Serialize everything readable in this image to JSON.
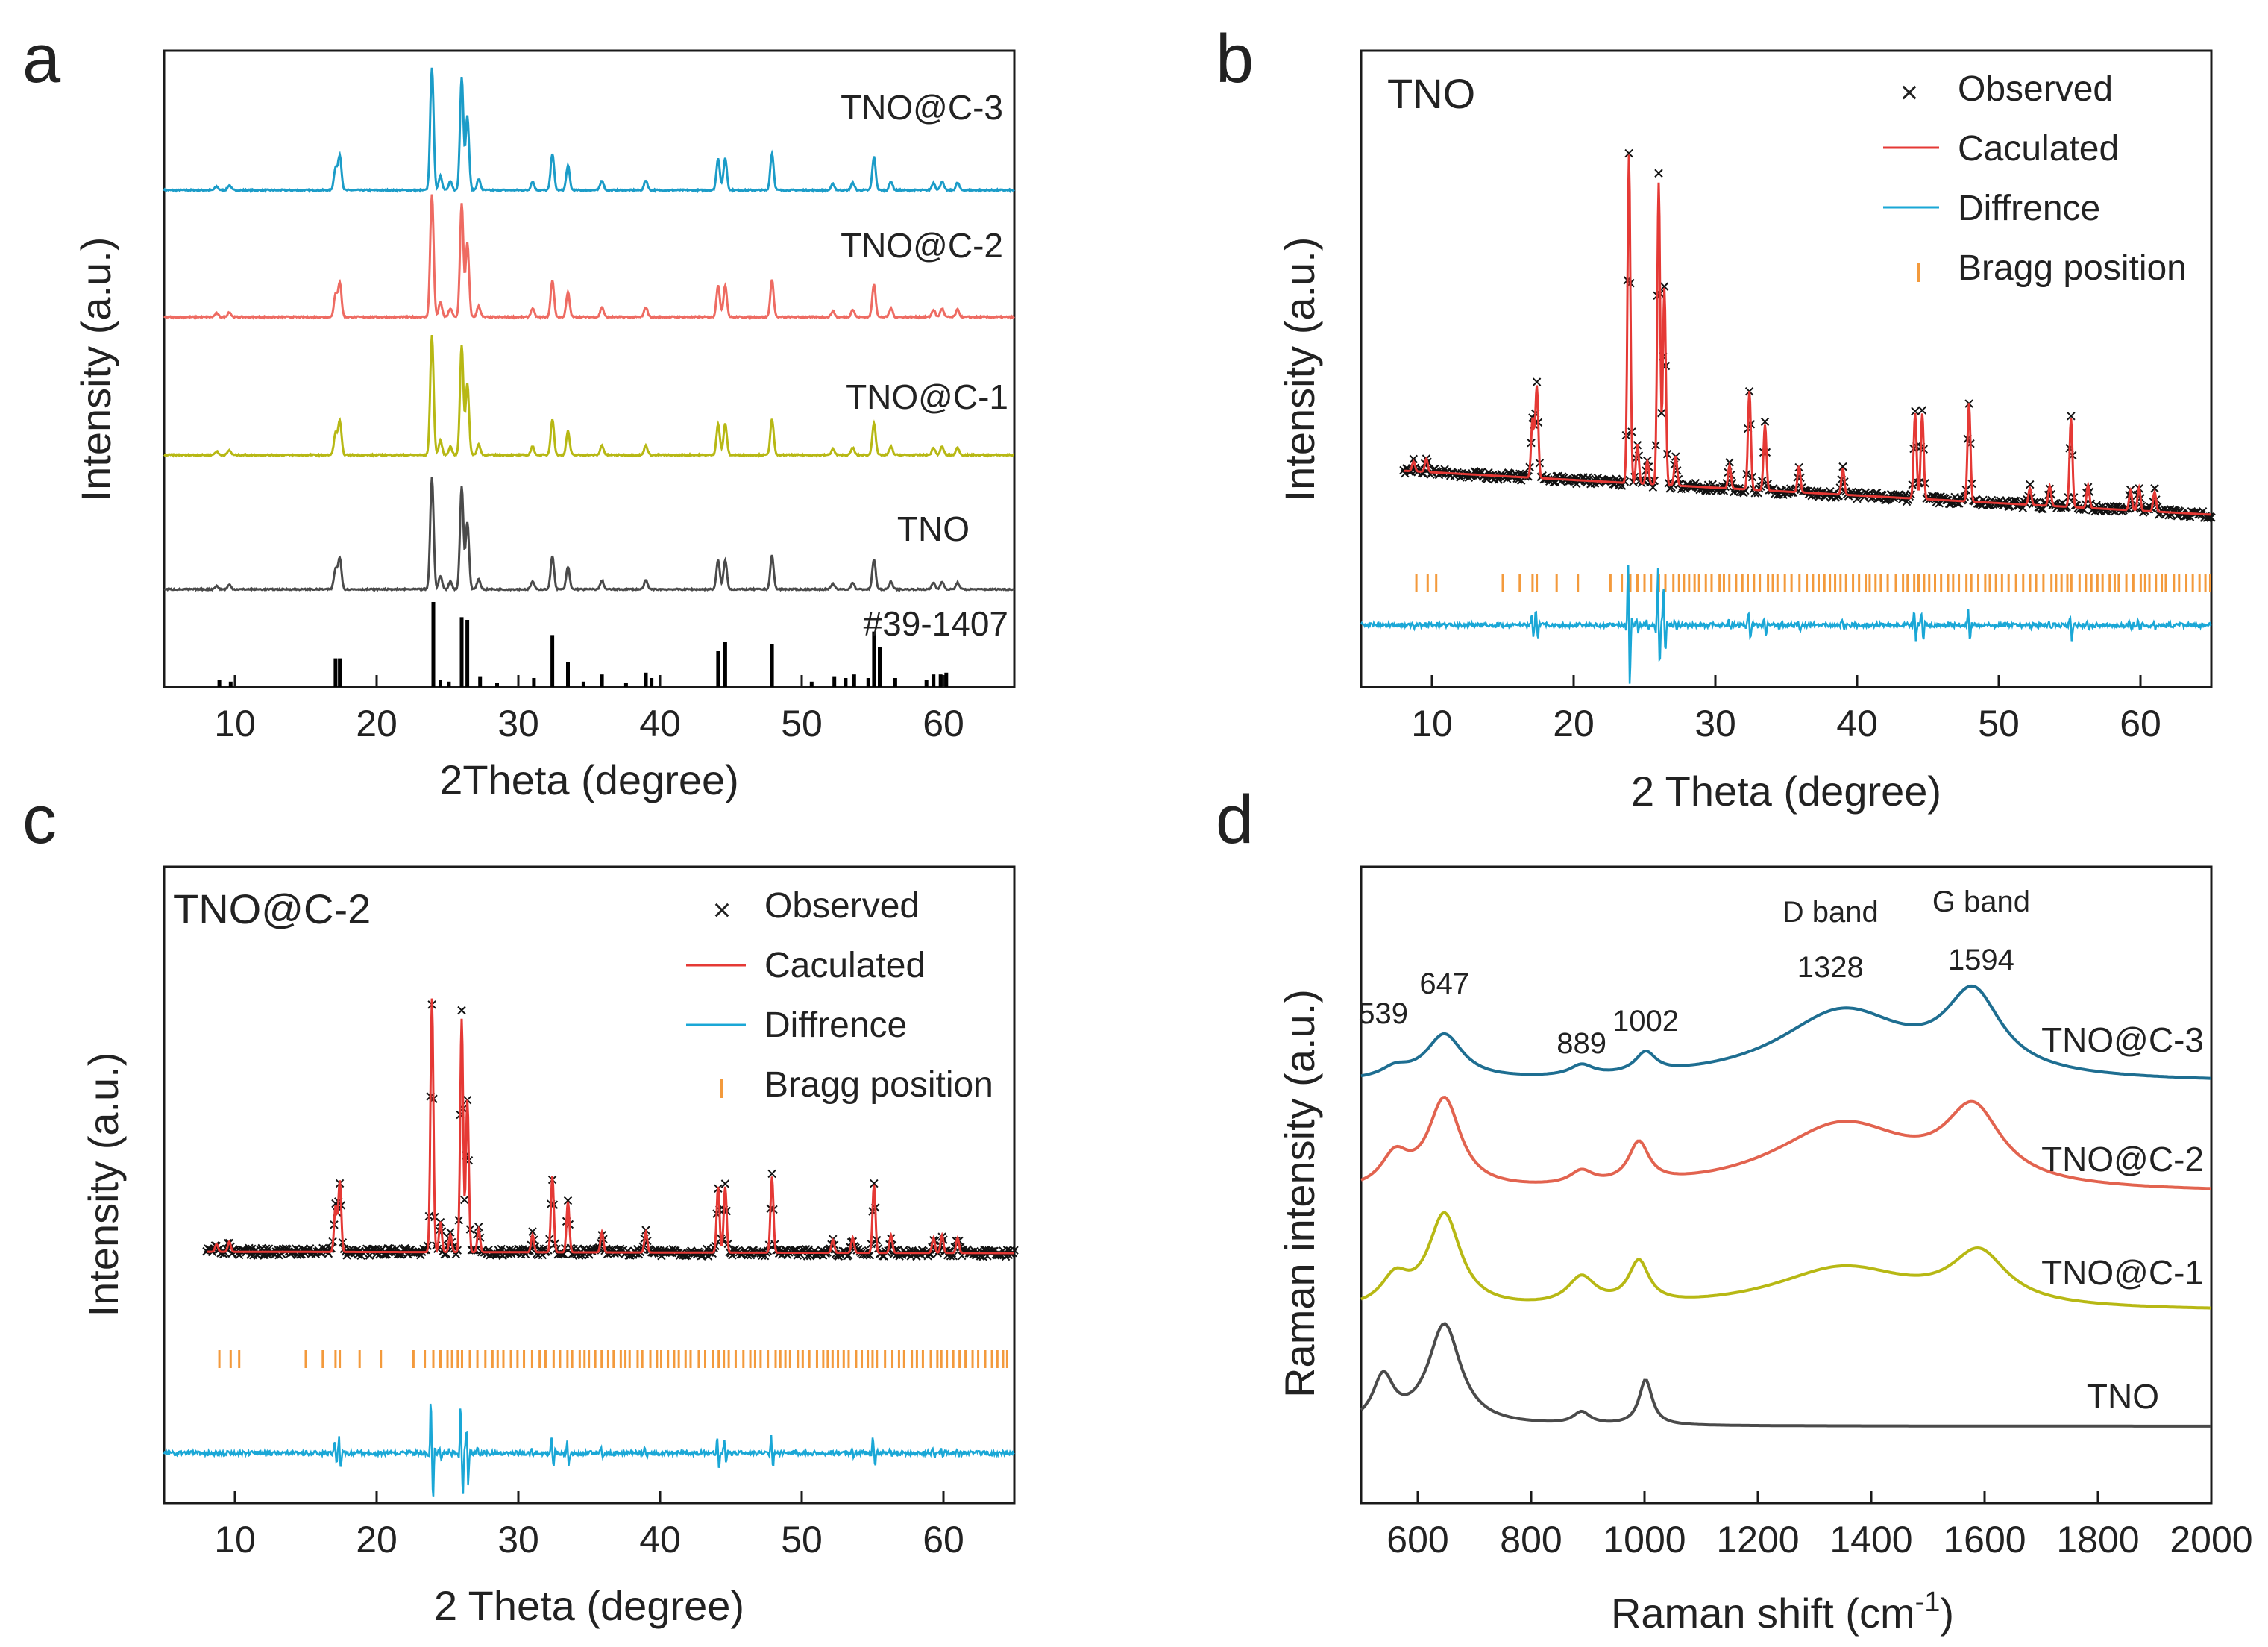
{
  "colors": {
    "TNO": "#4a4a4a",
    "TNO@C-1": "#b7b814",
    "TNO@C-2": "#ee6b62",
    "TNO@C-3": "#1b9cc8",
    "raman_TNO@C-3": "#1e6e91",
    "raman_TNO@C-2": "#e2634f",
    "observed": "#111111",
    "calculated": "#e53935",
    "difference": "#1aa7d6",
    "bragg": "#f39a3c",
    "reference": "#000000"
  },
  "chart_data": [
    {
      "panel": "a",
      "type": "line",
      "xlabel": "2Theta (degree)",
      "ylabel": "Intensity (a.u.)",
      "xlim": [
        5,
        65
      ],
      "xticks": [
        10,
        20,
        30,
        40,
        50,
        60
      ],
      "series_names": [
        "TNO@C-3",
        "TNO@C-2",
        "TNO@C-1",
        "TNO",
        "#39-1407"
      ],
      "peaks": [
        {
          "x": 8.7,
          "rel": 0.03
        },
        {
          "x": 9.6,
          "rel": 0.04
        },
        {
          "x": 17.1,
          "rel": 0.18
        },
        {
          "x": 17.4,
          "rel": 0.28
        },
        {
          "x": 23.9,
          "rel": 1.0
        },
        {
          "x": 24.5,
          "rel": 0.12
        },
        {
          "x": 25.2,
          "rel": 0.07
        },
        {
          "x": 26.0,
          "rel": 0.92
        },
        {
          "x": 26.4,
          "rel": 0.6
        },
        {
          "x": 27.2,
          "rel": 0.09
        },
        {
          "x": 31.0,
          "rel": 0.07
        },
        {
          "x": 32.4,
          "rel": 0.3
        },
        {
          "x": 33.5,
          "rel": 0.2
        },
        {
          "x": 35.9,
          "rel": 0.08
        },
        {
          "x": 39.0,
          "rel": 0.08
        },
        {
          "x": 44.1,
          "rel": 0.26
        },
        {
          "x": 44.6,
          "rel": 0.26
        },
        {
          "x": 47.9,
          "rel": 0.3
        },
        {
          "x": 52.2,
          "rel": 0.05
        },
        {
          "x": 53.6,
          "rel": 0.06
        },
        {
          "x": 55.1,
          "rel": 0.27
        },
        {
          "x": 56.3,
          "rel": 0.07
        },
        {
          "x": 59.3,
          "rel": 0.06
        },
        {
          "x": 59.9,
          "rel": 0.07
        },
        {
          "x": 61.0,
          "rel": 0.06
        }
      ],
      "reference_lines": [
        {
          "x": 8.9,
          "h": 0.08
        },
        {
          "x": 9.7,
          "h": 0.06
        },
        {
          "x": 17.1,
          "h": 0.32
        },
        {
          "x": 17.4,
          "h": 0.32
        },
        {
          "x": 24.0,
          "h": 0.95
        },
        {
          "x": 24.5,
          "h": 0.08
        },
        {
          "x": 25.1,
          "h": 0.06
        },
        {
          "x": 26.0,
          "h": 0.78
        },
        {
          "x": 26.4,
          "h": 0.75
        },
        {
          "x": 27.3,
          "h": 0.12
        },
        {
          "x": 28.5,
          "h": 0.05
        },
        {
          "x": 31.1,
          "h": 0.1
        },
        {
          "x": 32.4,
          "h": 0.58
        },
        {
          "x": 33.5,
          "h": 0.28
        },
        {
          "x": 34.6,
          "h": 0.06
        },
        {
          "x": 35.9,
          "h": 0.14
        },
        {
          "x": 37.6,
          "h": 0.05
        },
        {
          "x": 39.0,
          "h": 0.16
        },
        {
          "x": 39.4,
          "h": 0.1
        },
        {
          "x": 44.1,
          "h": 0.4
        },
        {
          "x": 44.6,
          "h": 0.5
        },
        {
          "x": 47.9,
          "h": 0.48
        },
        {
          "x": 50.7,
          "h": 0.06
        },
        {
          "x": 52.3,
          "h": 0.12
        },
        {
          "x": 53.1,
          "h": 0.1
        },
        {
          "x": 53.7,
          "h": 0.14
        },
        {
          "x": 54.7,
          "h": 0.1
        },
        {
          "x": 55.1,
          "h": 0.62
        },
        {
          "x": 55.5,
          "h": 0.45
        },
        {
          "x": 56.6,
          "h": 0.1
        },
        {
          "x": 58.8,
          "h": 0.08
        },
        {
          "x": 59.3,
          "h": 0.14
        },
        {
          "x": 59.8,
          "h": 0.14
        },
        {
          "x": 60.2,
          "h": 0.16
        }
      ]
    },
    {
      "panel": "b",
      "type": "line",
      "title": "TNO",
      "xlabel": "2 Theta (degree)",
      "ylabel": "Intensity (a.u.)",
      "xlim": [
        5,
        65
      ],
      "xticks": [
        10,
        20,
        30,
        40,
        50,
        60
      ],
      "legend": [
        "Observed",
        "Caculated",
        "Diffrence",
        "Bragg position"
      ],
      "legend_position": "top-right"
    },
    {
      "panel": "c",
      "type": "line",
      "title": "TNO@C-2",
      "xlabel": "2 Theta (degree)",
      "ylabel": "Intensity (a.u.)",
      "xlim": [
        5,
        65
      ],
      "xticks": [
        10,
        20,
        30,
        40,
        50,
        60
      ],
      "legend": [
        "Observed",
        "Caculated",
        "Diffrence",
        "Bragg position"
      ],
      "legend_position": "top-right"
    },
    {
      "panel": "d",
      "type": "line",
      "xlabel": "Raman shift (cm",
      "xlabel_sup": "-1",
      "xlabel_close": ")",
      "ylabel": "Raman intensity (a.u.)",
      "xlim": [
        500,
        2000
      ],
      "xticks": [
        600,
        800,
        1000,
        1200,
        1400,
        1600,
        1800,
        2000
      ],
      "series_names": [
        "TNO@C-3",
        "TNO@C-2",
        "TNO@C-1",
        "TNO"
      ],
      "peak_labels": [
        {
          "x": 539,
          "text": "539"
        },
        {
          "x": 647,
          "text": "647"
        },
        {
          "x": 889,
          "text": "889"
        },
        {
          "x": 1002,
          "text": "1002"
        },
        {
          "x": 1328,
          "text": "1328"
        },
        {
          "x": 1594,
          "text": "1594"
        }
      ],
      "band_labels": [
        {
          "x": 1328,
          "text": "D band"
        },
        {
          "x": 1594,
          "text": "G band"
        }
      ]
    }
  ],
  "panel_letters": {
    "a": "a",
    "b": "b",
    "c": "c",
    "d": "d"
  }
}
